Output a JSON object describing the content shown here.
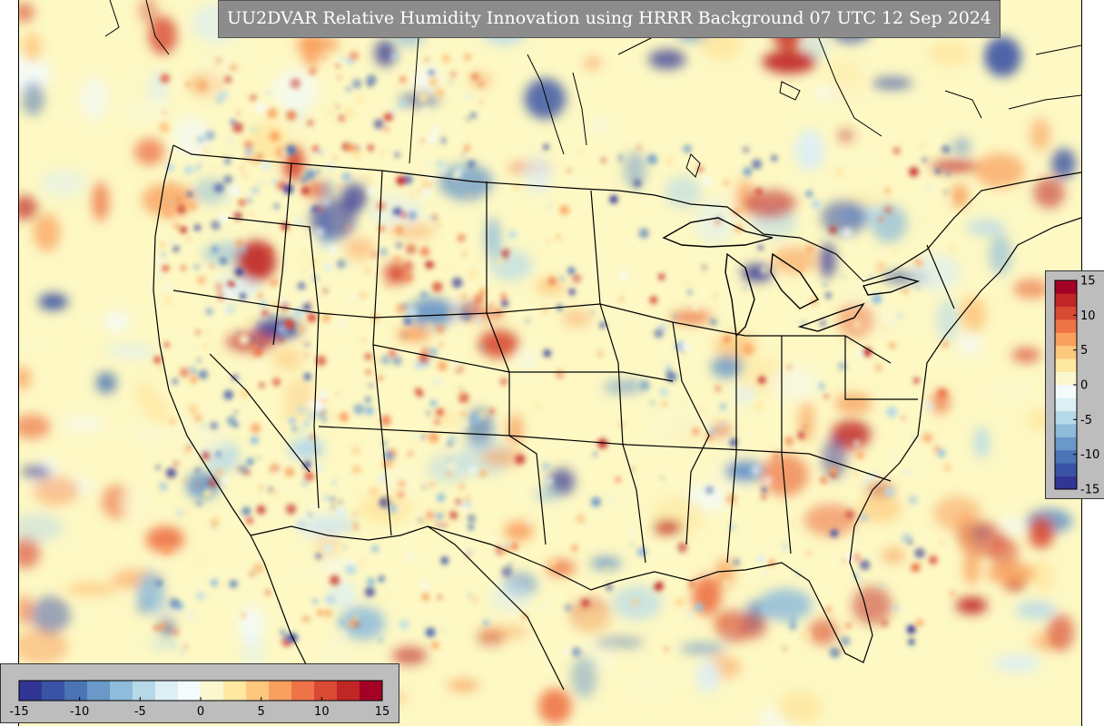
{
  "title": "UU2DVAR Relative Humidity Innovation using HRRR Background 07 UTC 12 Sep 2024",
  "colorbar": {
    "min": -15,
    "max": 15,
    "tick_values": [
      -15,
      -10,
      -5,
      0,
      5,
      10,
      15
    ],
    "right_tick_labels": [
      "15",
      "10",
      "5",
      "0",
      "-5",
      "-10",
      "-15"
    ],
    "bottom_tick_labels": [
      "-15",
      "-10",
      "-5",
      "0",
      "5",
      "10",
      "15"
    ],
    "colors": [
      "#313695",
      "#3a53a4",
      "#4a74b4",
      "#6a98c8",
      "#8fbcdb",
      "#b6d9e9",
      "#dceff5",
      "#f4fbfd",
      "#fbf8d0",
      "#fee8a2",
      "#fdc87e",
      "#f9a05e",
      "#ee7447",
      "#d84a33",
      "#c02626",
      "#a50026"
    ]
  },
  "map": {
    "background_color": "#fdf8c4",
    "region": "CONUS"
  }
}
